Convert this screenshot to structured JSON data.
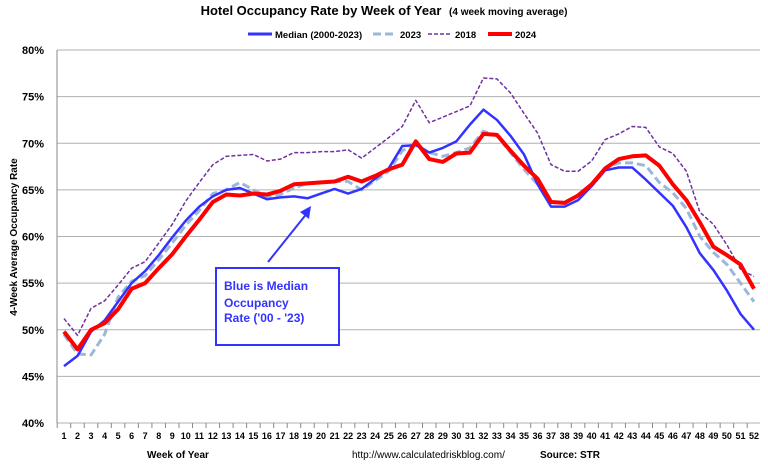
{
  "chart_data": {
    "type": "line",
    "title": "Hotel Occupancy Rate by  Week of Year",
    "subtitle": "(4 week moving average)",
    "xlabel": "Week of Year",
    "ylabel": "4-Week Average Occupancy Rate",
    "ylim": [
      40,
      80
    ],
    "yticks": [
      "40%",
      "45%",
      "50%",
      "55%",
      "60%",
      "65%",
      "70%",
      "75%",
      "80%"
    ],
    "ytick_values": [
      40,
      45,
      50,
      55,
      60,
      65,
      70,
      75,
      80
    ],
    "x": [
      1,
      2,
      3,
      4,
      5,
      6,
      7,
      8,
      9,
      10,
      11,
      12,
      13,
      14,
      15,
      16,
      17,
      18,
      19,
      20,
      21,
      22,
      23,
      24,
      25,
      26,
      27,
      28,
      29,
      30,
      31,
      32,
      33,
      34,
      35,
      36,
      37,
      38,
      39,
      40,
      41,
      42,
      43,
      44,
      45,
      46,
      47,
      48,
      49,
      50,
      51,
      52
    ],
    "grid": true,
    "legend_position": "top",
    "series": [
      {
        "name": "Median (2000-2023)",
        "color": "#3333ff",
        "style": "solid",
        "values": [
          46.1,
          47.2,
          49.8,
          51.0,
          53.0,
          55.0,
          56.3,
          58.0,
          59.9,
          61.7,
          63.2,
          64.3,
          65.0,
          65.2,
          64.6,
          64.0,
          64.2,
          64.3,
          64.1,
          64.6,
          65.1,
          64.6,
          65.1,
          66.2,
          67.3,
          69.7,
          69.8,
          69.0,
          69.5,
          70.2,
          72.0,
          73.6,
          72.5,
          70.8,
          68.8,
          65.6,
          63.2,
          63.2,
          63.9,
          65.4,
          67.1,
          67.4,
          67.4,
          66.1,
          64.7,
          63.3,
          61.0,
          58.2,
          56.4,
          54.2,
          51.7,
          50.0
        ]
      },
      {
        "name": "2023",
        "color": "#9bb7d9",
        "style": "dashed",
        "values": [
          49.5,
          47.4,
          47.3,
          49.5,
          53.5,
          55.2,
          55.8,
          57.5,
          59.3,
          61.2,
          62.8,
          64.6,
          65.0,
          65.8,
          65.0,
          64.3,
          64.5,
          65.2,
          65.7,
          65.8,
          65.9,
          65.9,
          65.0,
          66.0,
          67.0,
          69.2,
          69.9,
          69.0,
          68.6,
          69.0,
          69.5,
          71.3,
          70.8,
          69.0,
          67.2,
          65.6,
          63.6,
          63.7,
          64.4,
          65.5,
          67.3,
          67.9,
          67.9,
          67.6,
          65.8,
          64.7,
          63.0,
          60.0,
          58.3,
          57.0,
          55.0,
          53.0
        ]
      },
      {
        "name": "2018",
        "color": "#7030a0",
        "style": "dotted",
        "values": [
          51.2,
          49.4,
          52.3,
          53.1,
          54.8,
          56.6,
          57.3,
          59.3,
          61.3,
          63.8,
          65.8,
          67.7,
          68.6,
          68.7,
          68.8,
          68.1,
          68.3,
          69.0,
          69.0,
          69.1,
          69.1,
          69.3,
          68.4,
          69.5,
          70.6,
          71.8,
          74.6,
          72.2,
          72.8,
          73.4,
          74.0,
          77.0,
          76.9,
          75.4,
          73.2,
          71.1,
          67.7,
          67.0,
          67.0,
          68.1,
          70.4,
          71.0,
          71.8,
          71.7,
          69.6,
          68.9,
          67.0,
          62.6,
          61.3,
          59.1,
          56.5,
          55.7
        ]
      },
      {
        "name": "2024",
        "color": "#ff0000",
        "style": "solid",
        "values": [
          49.8,
          47.9,
          50.0,
          50.7,
          52.2,
          54.4,
          55.0,
          56.6,
          58.1,
          60.0,
          61.8,
          63.7,
          64.5,
          64.4,
          64.6,
          64.5,
          64.9,
          65.6,
          65.7,
          65.8,
          65.9,
          66.4,
          65.9,
          66.5,
          67.2,
          67.7,
          70.2,
          68.3,
          68.0,
          68.9,
          69.0,
          71.0,
          70.9,
          69.2,
          67.6,
          66.2,
          63.7,
          63.6,
          64.4,
          65.6,
          67.3,
          68.3,
          68.6,
          68.7,
          67.6,
          65.6,
          63.9,
          61.5,
          58.9,
          58.0,
          57.0,
          54.4
        ]
      }
    ],
    "annotation": {
      "lines": [
        "Blue is Median",
        "Occupancy",
        "Rate ('00 - '23)"
      ],
      "color": "#3333ff"
    },
    "footer": {
      "url": "http://www.calculatedriskblog.com/",
      "source": "Source: STR"
    }
  }
}
